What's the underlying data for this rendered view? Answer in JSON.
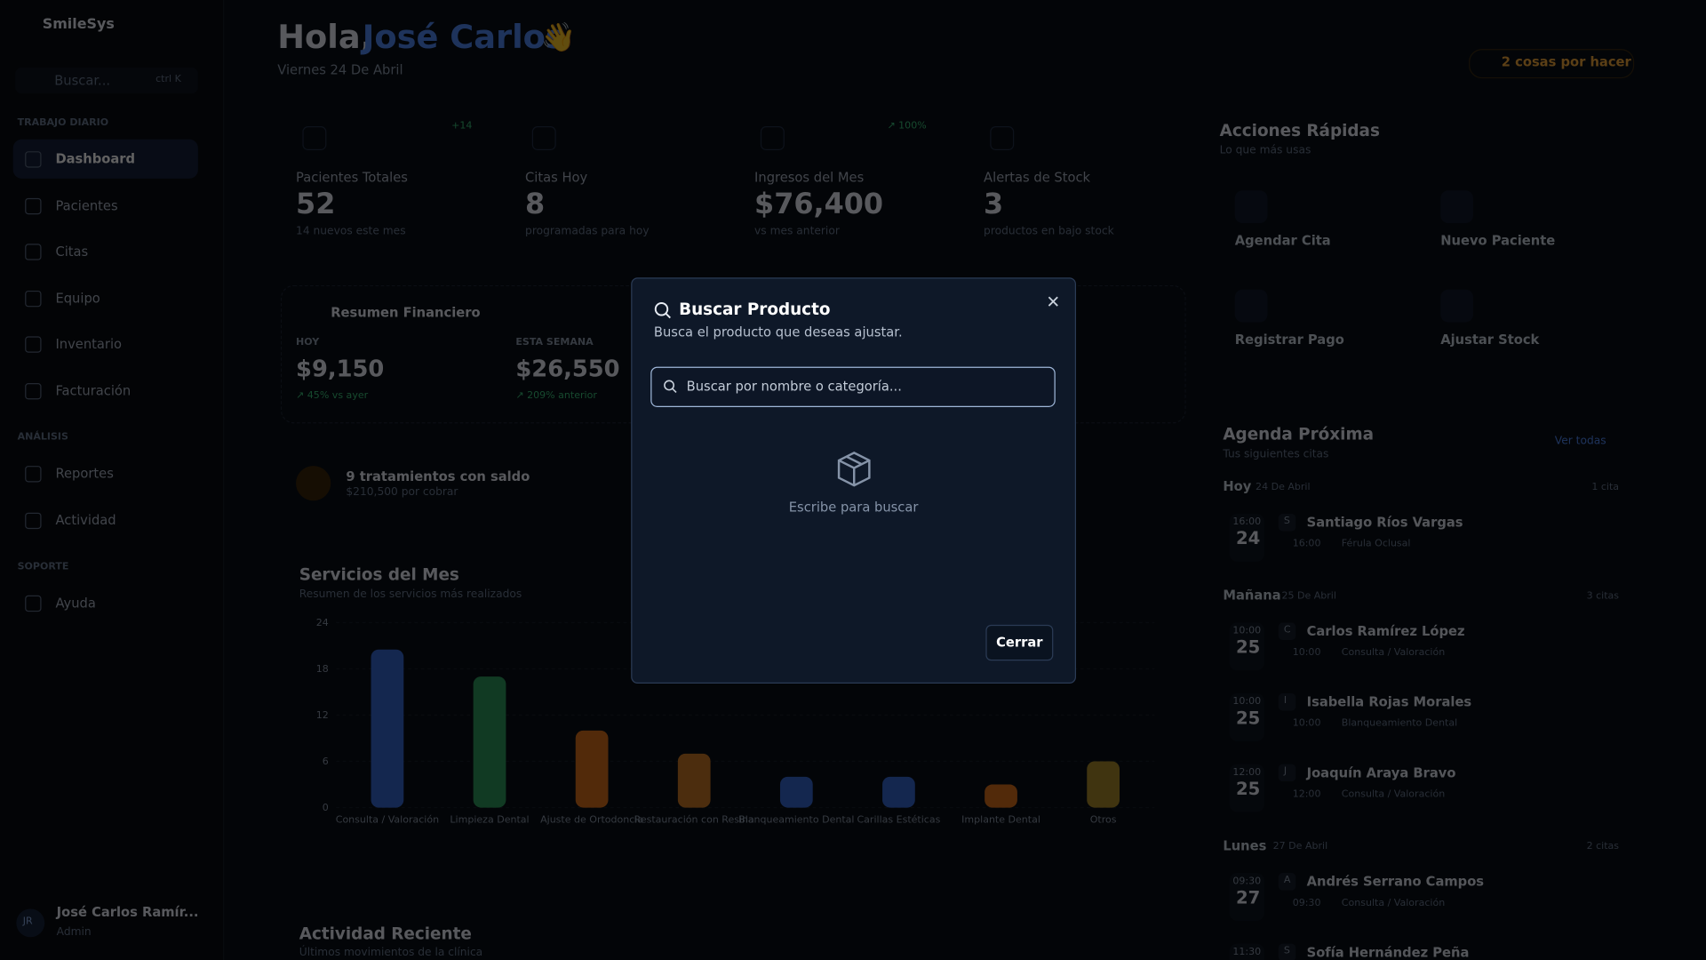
{
  "sidebar": {
    "brand": "SmileSys",
    "search": "Buscar...",
    "shortcut": "ctrl K",
    "sections": [
      {
        "title": "TRABAJO DIARIO",
        "items": [
          "Dashboard",
          "Pacientes",
          "Citas",
          "Equipo",
          "Inventario",
          "Facturación"
        ]
      },
      {
        "title": "ANÁLISIS",
        "items": [
          "Reportes",
          "Actividad"
        ]
      },
      {
        "title": "SOPORTE",
        "items": [
          "Ayuda"
        ]
      }
    ],
    "user": {
      "initials": "JR",
      "name": "José Carlos Ramír...",
      "role": "Admin"
    }
  },
  "header": {
    "greeting": "Hola,",
    "name": "José Carlos",
    "emoji": "👋",
    "date": "Viernes 24 De Abril",
    "todo": "2 cosas por hacer"
  },
  "stats": [
    {
      "label": "Pacientes Totales",
      "value": "52",
      "sub": "14 nuevos este mes",
      "badge": "+14"
    },
    {
      "label": "Citas Hoy",
      "value": "8",
      "sub": "programadas para hoy"
    },
    {
      "label": "Ingresos del Mes",
      "value": "$76,400",
      "sub": "vs mes anterior",
      "badge": "↗ 100%"
    },
    {
      "label": "Alertas de Stock",
      "value": "3",
      "sub": "productos en bajo stock"
    }
  ],
  "finance": {
    "title": "Resumen Financiero",
    "periods": [
      {
        "label": "HOY",
        "value": "$9,150",
        "sub": "↗ 45% vs ayer"
      },
      {
        "label": "ESTA SEMANA",
        "value": "$26,550",
        "sub": "↗ 209% anterior"
      }
    ]
  },
  "balance": {
    "title": "9 tratamientos con saldo",
    "sub": "$210,500 por cobrar"
  },
  "services_chart": {
    "type": "bar",
    "title": "Servicios del Mes",
    "subtitle": "Resumen de los servicios más realizados",
    "categories": [
      "Consulta / Valoración",
      "Limpieza Dental",
      "Ajuste de Ortodoncia",
      "Restauración con Resina",
      "Blanqueamiento Dental",
      "Carillas Estéticas",
      "Implante Dental",
      "Otros"
    ],
    "values": [
      20.5,
      17,
      10,
      7,
      4,
      4,
      3,
      6
    ],
    "colors": [
      "#3567d0",
      "#2f9a5c",
      "#d8701c",
      "#c87826",
      "#3567d0",
      "#3567d0",
      "#d8701c",
      "#a88a2a"
    ],
    "ylim": [
      0,
      24
    ],
    "yticks": [
      0,
      6,
      12,
      18,
      24
    ]
  },
  "activity": {
    "title": "Actividad Reciente",
    "subtitle": "Últimos movimientos de la clínica"
  },
  "quick": {
    "title": "Acciones Rápidas",
    "subtitle": "Lo que más usas",
    "actions": [
      "Agendar Cita",
      "Nuevo Paciente",
      "Registrar Pago",
      "Ajustar Stock"
    ]
  },
  "agenda": {
    "title": "Agenda Próxima",
    "subtitle": "Tus siguientes citas",
    "link": "Ver todas",
    "days": [
      {
        "day": "Hoy",
        "date": "24 De Abril",
        "count": "1 cita",
        "items": [
          {
            "time": "16:00",
            "num": "24",
            "initial": "S",
            "name": "Santiago Ríos Vargas",
            "detail_time": "16:00",
            "service": "Férula Oclusal"
          }
        ]
      },
      {
        "day": "Mañana",
        "date": "25 De Abril",
        "count": "3 citas",
        "items": [
          {
            "time": "10:00",
            "num": "25",
            "initial": "C",
            "name": "Carlos Ramírez López",
            "detail_time": "10:00",
            "service": "Consulta / Valoración"
          },
          {
            "time": "10:00",
            "num": "25",
            "initial": "I",
            "name": "Isabella Rojas Morales",
            "detail_time": "10:00",
            "service": "Blanqueamiento Dental"
          },
          {
            "time": "12:00",
            "num": "25",
            "initial": "J",
            "name": "Joaquín Araya Bravo",
            "detail_time": "12:00",
            "service": "Consulta / Valoración"
          }
        ]
      },
      {
        "day": "Lunes",
        "date": "27 De Abril",
        "count": "2 citas",
        "items": [
          {
            "time": "09:30",
            "num": "27",
            "initial": "A",
            "name": "Andrés Serrano Campos",
            "detail_time": "09:30",
            "service": "Consulta / Valoración"
          },
          {
            "time": "11:30",
            "initial": "S",
            "name": "Sofía Hernández Peña"
          }
        ]
      }
    ]
  },
  "modal": {
    "title": "Buscar Producto",
    "subtitle": "Busca el producto que deseas ajustar.",
    "placeholder": "Buscar por nombre o categoría...",
    "empty": "Escribe para buscar",
    "close": "Cerrar"
  }
}
